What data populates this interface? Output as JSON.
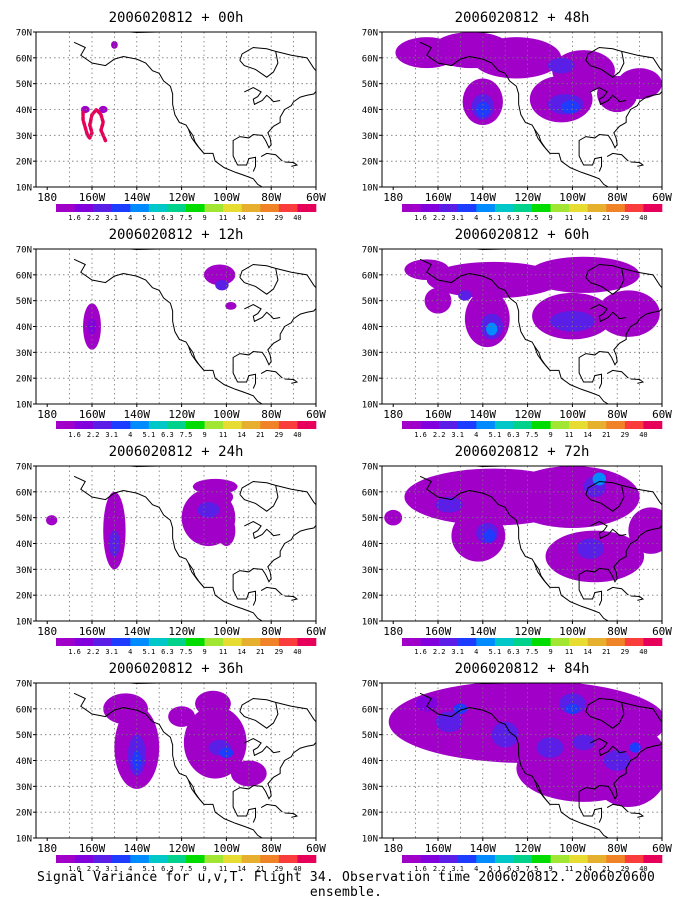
{
  "footer": "Signal Variance for u,v,T. Flight 34. Observation time 2006020812. 2006020600 ensemble.",
  "lat_labels": [
    "70N",
    "60N",
    "50N",
    "40N",
    "30N",
    "20N",
    "10N"
  ],
  "lon_labels": [
    "180",
    "160W",
    "140W",
    "120W",
    "100W",
    "80W",
    "60W"
  ],
  "colorbar": {
    "labels": [
      "1.6",
      "2.2",
      "3.1",
      "4",
      "5.1",
      "6.3",
      "7.5",
      "9",
      "11",
      "14",
      "21",
      "29",
      "40"
    ],
    "colors": [
      "#a000c8",
      "#8200dc",
      "#5a1ee6",
      "#1e3cff",
      "#008cff",
      "#00c8c8",
      "#00d28c",
      "#00dc00",
      "#a0e632",
      "#e6dc32",
      "#e6af2d",
      "#f08228",
      "#fa3c3c",
      "#e6005a"
    ]
  },
  "panels": [
    {
      "title": "2006020812 + 00h"
    },
    {
      "title": "2006020812 + 48h"
    },
    {
      "title": "2006020812 + 12h"
    },
    {
      "title": "2006020812 + 60h"
    },
    {
      "title": "2006020812 + 24h"
    },
    {
      "title": "2006020812 + 72h"
    },
    {
      "title": "2006020812 + 36h"
    },
    {
      "title": "2006020812 + 84h"
    }
  ]
}
